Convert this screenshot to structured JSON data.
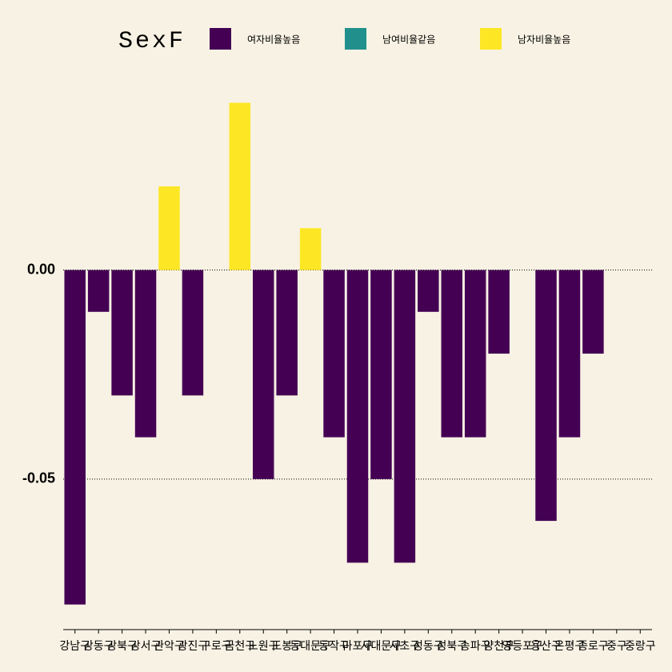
{
  "chart_data": {
    "type": "bar",
    "legend_title": "SexF",
    "categories": [
      "강남구",
      "강동구",
      "강북구",
      "강서구",
      "관악구",
      "광진구",
      "구로구",
      "금천구",
      "노원구",
      "도봉구",
      "동대문구",
      "동작구",
      "마포구",
      "서대문구",
      "서초구",
      "성동구",
      "성북구",
      "송파구",
      "양천구",
      "영등포구",
      "용산구",
      "은평구",
      "종로구",
      "중구",
      "중랑구"
    ],
    "series": [
      {
        "name": "여자비율높음",
        "color": "#440154",
        "values": [
          -0.08,
          -0.01,
          -0.03,
          -0.04,
          null,
          -0.03,
          null,
          null,
          -0.05,
          -0.03,
          null,
          -0.04,
          -0.07,
          -0.05,
          -0.07,
          -0.01,
          -0.04,
          -0.04,
          -0.02,
          null,
          -0.06,
          -0.04,
          -0.02,
          null,
          null
        ]
      },
      {
        "name": "남여비율같음",
        "color": "#21908C",
        "values": [
          null,
          null,
          null,
          null,
          null,
          null,
          0,
          null,
          null,
          null,
          null,
          null,
          null,
          null,
          null,
          null,
          null,
          null,
          null,
          0,
          null,
          null,
          null,
          0,
          0
        ]
      },
      {
        "name": "남자비율높음",
        "color": "#FDE725",
        "values": [
          null,
          null,
          null,
          null,
          0.02,
          null,
          null,
          0.04,
          null,
          null,
          0.01,
          null,
          null,
          null,
          null,
          null,
          null,
          null,
          null,
          null,
          null,
          null,
          null,
          null,
          null
        ]
      }
    ],
    "ylim": [
      -0.086,
      0.042
    ],
    "yticks": [
      {
        "value": 0,
        "label": "0.00"
      },
      -0.05
    ],
    "grid": true
  }
}
